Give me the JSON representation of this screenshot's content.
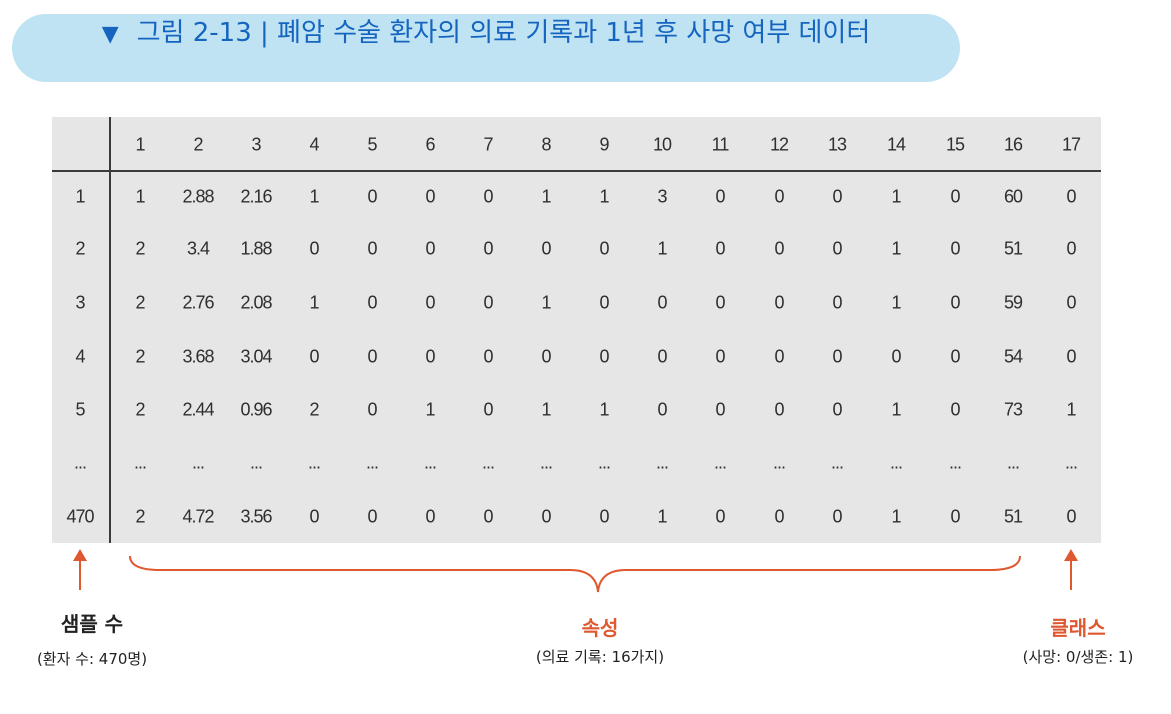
{
  "banner": {
    "marker": "▼",
    "text": "그림 2-13 | 폐암 수술 환자의 의료 기록과 1년 후 사망 여부 데이터"
  },
  "table": {
    "columns": [
      "",
      "1",
      "2",
      "3",
      "4",
      "5",
      "6",
      "7",
      "8",
      "9",
      "10",
      "11",
      "12",
      "13",
      "14",
      "15",
      "16",
      "17"
    ],
    "rows": [
      [
        "1",
        "1",
        "2.88",
        "2.16",
        "1",
        "0",
        "0",
        "0",
        "1",
        "1",
        "3",
        "0",
        "0",
        "0",
        "1",
        "0",
        "60",
        "0"
      ],
      [
        "2",
        "2",
        "3.4",
        "1.88",
        "0",
        "0",
        "0",
        "0",
        "0",
        "0",
        "1",
        "0",
        "0",
        "0",
        "1",
        "0",
        "51",
        "0"
      ],
      [
        "3",
        "2",
        "2.76",
        "2.08",
        "1",
        "0",
        "0",
        "0",
        "1",
        "0",
        "0",
        "0",
        "0",
        "0",
        "1",
        "0",
        "59",
        "0"
      ],
      [
        "4",
        "2",
        "3.68",
        "3.04",
        "0",
        "0",
        "0",
        "0",
        "0",
        "0",
        "0",
        "0",
        "0",
        "0",
        "0",
        "0",
        "54",
        "0"
      ],
      [
        "5",
        "2",
        "2.44",
        "0.96",
        "2",
        "0",
        "1",
        "0",
        "1",
        "1",
        "0",
        "0",
        "0",
        "0",
        "1",
        "0",
        "73",
        "1"
      ],
      [
        "...",
        "...",
        "...",
        "...",
        "...",
        "...",
        "...",
        "...",
        "...",
        "...",
        "...",
        "...",
        "...",
        "...",
        "...",
        "...",
        "...",
        "..."
      ],
      [
        "470",
        "2",
        "4.72",
        "3.56",
        "0",
        "0",
        "0",
        "0",
        "0",
        "0",
        "1",
        "0",
        "0",
        "0",
        "1",
        "0",
        "51",
        "0"
      ]
    ]
  },
  "annotations": {
    "samples_label": "샘플 수",
    "samples_sub": "(환자 수: 470명)",
    "attributes_label": "속성",
    "attributes_sub": "(의료 기록: 16가지)",
    "class_label": "클래스",
    "class_sub": "(사망: 0/생존: 1)"
  },
  "colors": {
    "banner_bg": "#bfe3f2",
    "banner_text": "#1565c0",
    "accent_red": "#e0582f",
    "table_bg": "#e6e6e6"
  }
}
